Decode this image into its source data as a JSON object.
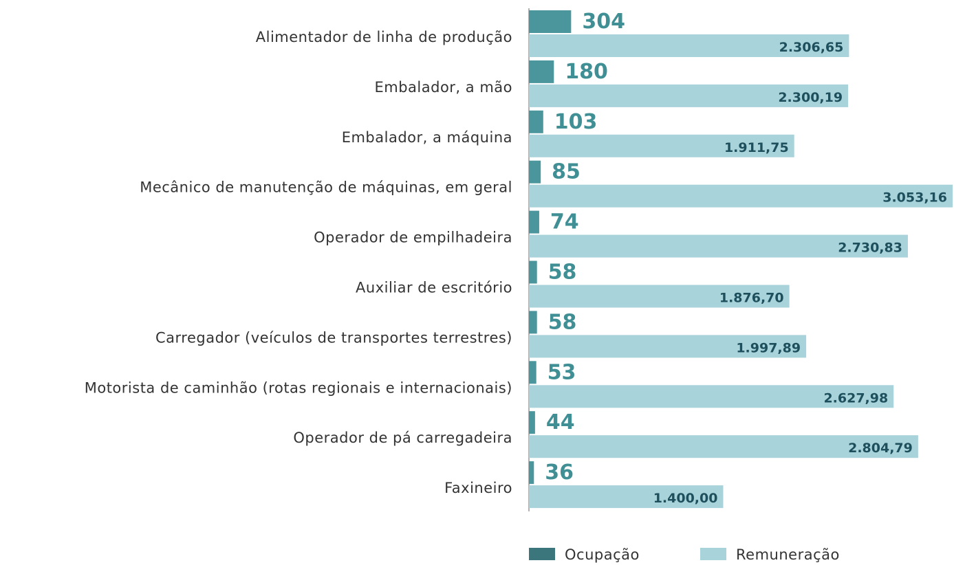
{
  "chart_data": {
    "type": "bar",
    "orientation": "horizontal",
    "categories": [
      "Alimentador de linha de produção",
      "Embalador, a mão",
      "Embalador, a máquina",
      "Mecânico de manutenção de máquinas, em geral",
      "Operador de empilhadeira",
      "Auxiliar de escritório",
      "Carregador (veículos de transportes terrestres)",
      "Motorista de caminhão (rotas regionais e internacionais)",
      "Operador de pá carregadeira",
      "Faxineiro"
    ],
    "series": [
      {
        "name": "Ocupação",
        "color": "#4a969c",
        "values": [
          304,
          180,
          103,
          85,
          74,
          58,
          58,
          53,
          44,
          36
        ]
      },
      {
        "name": "Remuneração",
        "color": "#a9d3da",
        "values": [
          2306.65,
          2300.19,
          1911.75,
          3053.16,
          2730.83,
          1876.7,
          1997.89,
          2627.98,
          2804.79,
          1400.0
        ],
        "value_labels": [
          "2.306,65",
          "2.300,19",
          "1.911,75",
          "3.053,16",
          "2.730,83",
          "1.876,70",
          "1.997,89",
          "2.627,98",
          "2.804,79",
          "1.400,00"
        ]
      }
    ],
    "legend": "bottom"
  }
}
